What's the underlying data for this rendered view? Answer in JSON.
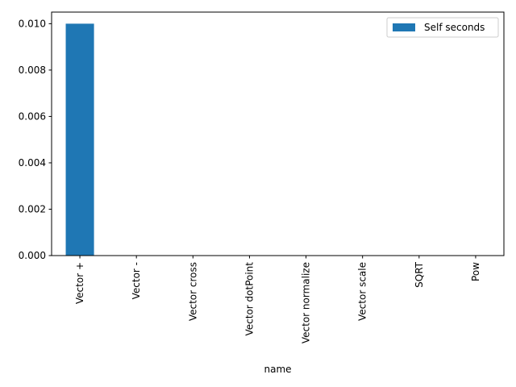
{
  "chart_data": {
    "type": "bar",
    "categories": [
      "Vector +",
      "Vector -",
      "Vector cross",
      "Vector dotPoint",
      "Vector normalize",
      "Vector scale",
      "SQRT",
      "Pow"
    ],
    "series": [
      {
        "name": "Self seconds",
        "values": [
          0.01,
          0.0,
          0.0,
          0.0,
          0.0,
          0.0,
          0.0,
          0.0
        ],
        "color": "#1f77b4"
      }
    ],
    "xlabel": "name",
    "ylabel": "",
    "ylim": [
      0,
      0.0105
    ],
    "yticks": [
      0.0,
      0.002,
      0.004,
      0.006,
      0.008,
      0.01
    ],
    "ytick_labels": [
      "0.000",
      "0.002",
      "0.004",
      "0.006",
      "0.008",
      "0.010"
    ],
    "legend_position": "top-right",
    "grid": false
  }
}
